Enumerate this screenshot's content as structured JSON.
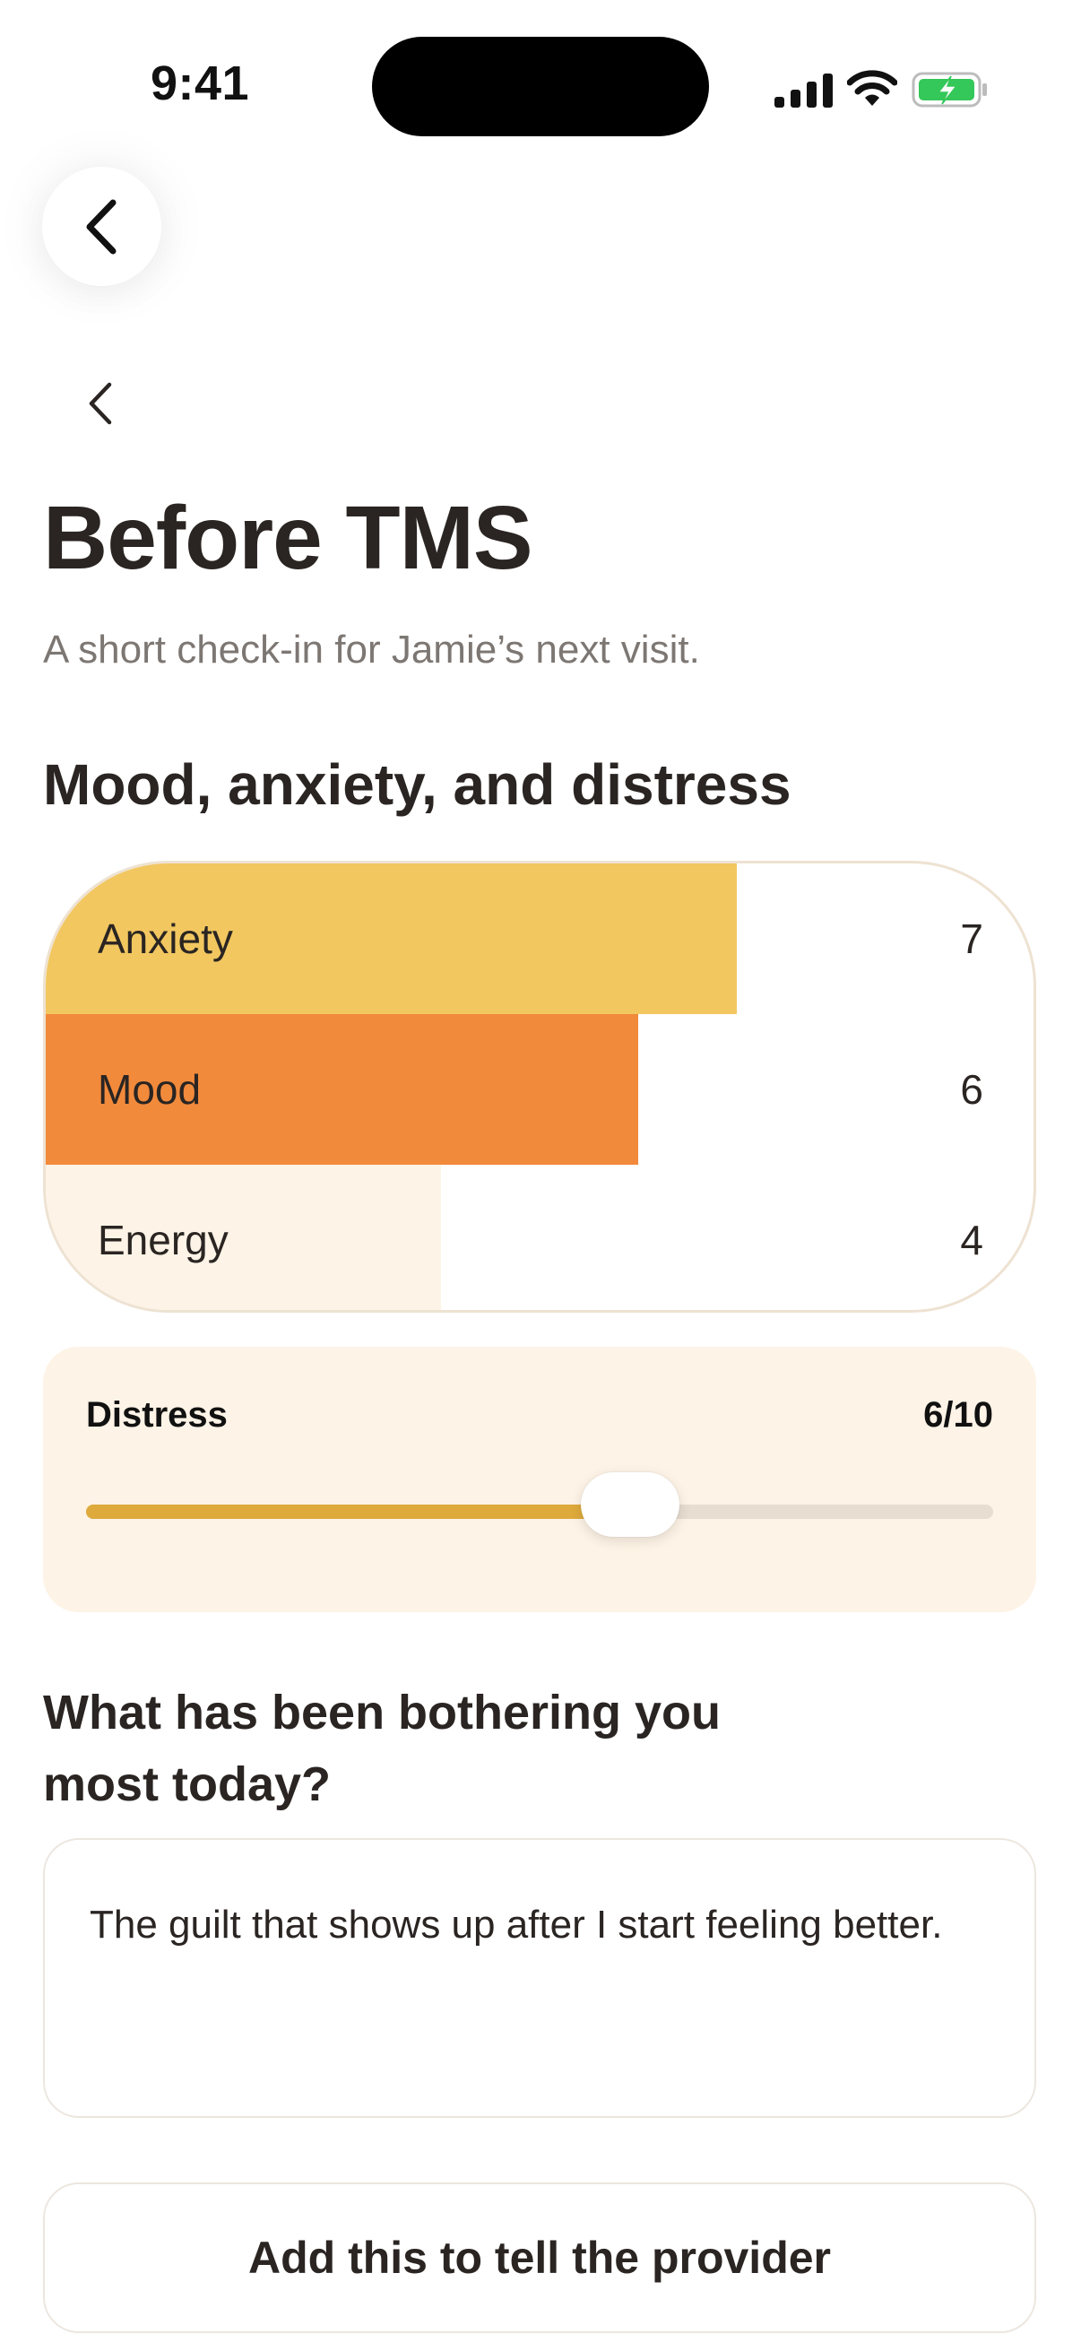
{
  "status_bar": {
    "time": "9:41"
  },
  "page": {
    "title": "Before TMS",
    "subtitle": "A short check-in for Jamie’s next visit.",
    "section_title": "Mood, anxiety, and distress"
  },
  "chart_data": {
    "type": "bar",
    "orientation": "horizontal",
    "categories": [
      "Anxiety",
      "Mood",
      "Energy"
    ],
    "values": [
      7,
      6,
      4
    ],
    "xlim": [
      0,
      10
    ],
    "colors": [
      "#f2c760",
      "#f28a3c",
      "#fdf3e6"
    ]
  },
  "distress": {
    "label": "Distress",
    "value_text": "6/10",
    "value": 6,
    "max": 10,
    "fill_color": "#deaa3c"
  },
  "question": {
    "text": "What has been bothering you most today?",
    "answer": "The guilt that shows up after I start feeling better."
  },
  "actions": {
    "provider_button_label": "Add this to tell the provider"
  },
  "icons": {
    "back_circle": "chevron-left-icon",
    "back_plain": "chevron-left-icon",
    "signal": "cellular-signal-icon",
    "wifi": "wifi-icon",
    "battery": "battery-charging-icon"
  }
}
